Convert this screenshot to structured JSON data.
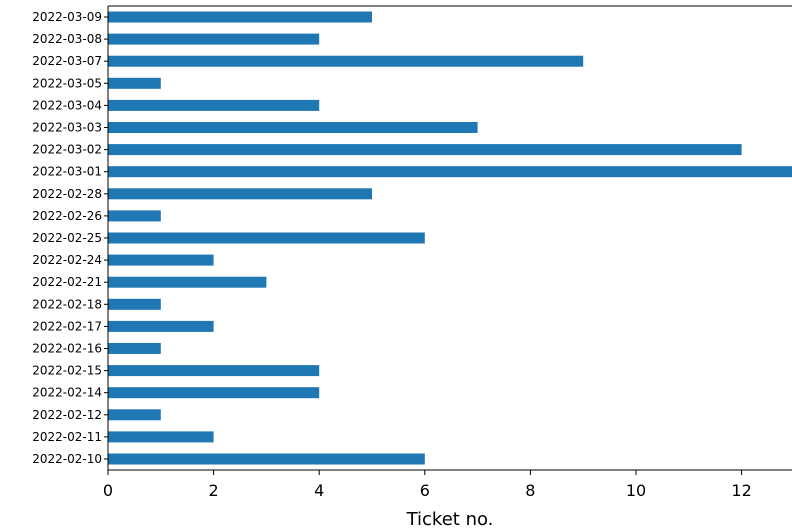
{
  "chart_data": {
    "type": "bar",
    "orientation": "horizontal",
    "title": "",
    "xlabel": "Ticket no.",
    "ylabel": "",
    "xlim": [
      0,
      13
    ],
    "xticks": [
      0,
      2,
      4,
      6,
      8,
      10,
      12
    ],
    "grid": false,
    "legend": "none",
    "bar_color": "#1f77b4",
    "categories": [
      "2022-02-10",
      "2022-02-11",
      "2022-02-12",
      "2022-02-14",
      "2022-02-15",
      "2022-02-16",
      "2022-02-17",
      "2022-02-18",
      "2022-02-21",
      "2022-02-24",
      "2022-02-25",
      "2022-02-26",
      "2022-02-28",
      "2022-03-01",
      "2022-03-02",
      "2022-03-03",
      "2022-03-04",
      "2022-03-05",
      "2022-03-07",
      "2022-03-08",
      "2022-03-09"
    ],
    "values": [
      6,
      2,
      1,
      4,
      4,
      1,
      2,
      1,
      3,
      2,
      6,
      1,
      5,
      13,
      12,
      7,
      4,
      1,
      9,
      4,
      5
    ]
  }
}
